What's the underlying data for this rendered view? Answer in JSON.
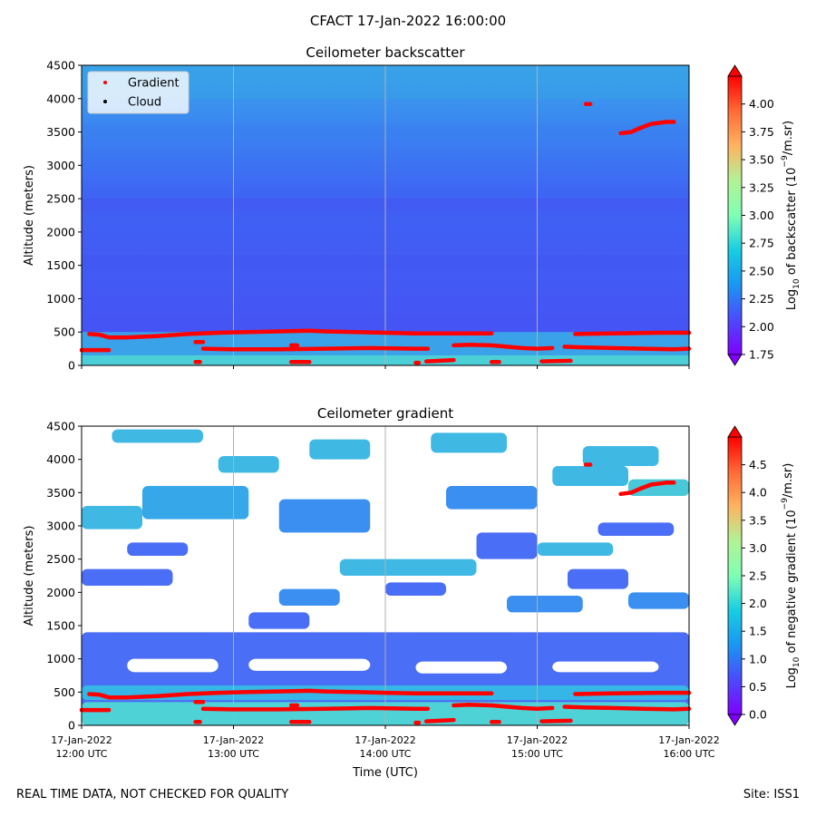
{
  "suptitle": "CFACT 17-Jan-2022 16:00:00",
  "footer": {
    "left": "REAL TIME DATA, NOT CHECKED FOR QUALITY",
    "right": "Site: ISS1"
  },
  "chart_data": [
    {
      "type": "heatmap",
      "title": "Ceilometer backscatter",
      "ylabel": "Altitude (meters)",
      "xlabel": "",
      "ylim": [
        0,
        4500
      ],
      "xlim": [
        12,
        16
      ],
      "yticks": [
        "0",
        "500",
        "1000",
        "1500",
        "2000",
        "2500",
        "3000",
        "3500",
        "4000",
        "4500"
      ],
      "xticks_shown": false,
      "grid": "vertical",
      "background_color": "#3b5cf2",
      "colorbar": {
        "label_prefix": "Log",
        "label_sub": "10",
        "label_mid": " of backscatter (10",
        "label_sup": "−9",
        "label_suffix": "/m.sr)",
        "min": 1.75,
        "max": 4.25,
        "ticks": [
          "1.75",
          "2.00",
          "2.25",
          "2.50",
          "2.75",
          "3.00",
          "3.25",
          "3.50",
          "3.75",
          "4.00"
        ],
        "extend": "both",
        "colormap": "rainbow"
      },
      "legend": {
        "position": "upper-left",
        "entries": [
          {
            "label": "Gradient",
            "color": "#ff0000"
          },
          {
            "label": "Cloud",
            "color": "#000000"
          }
        ]
      },
      "series": [
        {
          "name": "Gradient",
          "color": "#ff0000",
          "segments": [
            [
              [
                12.05,
                470
              ],
              [
                12.12,
                460
              ],
              [
                12.18,
                420
              ],
              [
                12.3,
                420
              ],
              [
                12.5,
                440
              ],
              [
                12.7,
                470
              ],
              [
                12.9,
                490
              ],
              [
                13.1,
                500
              ],
              [
                13.3,
                510
              ],
              [
                13.5,
                520
              ],
              [
                13.6,
                510
              ],
              [
                13.8,
                500
              ],
              [
                14.0,
                490
              ],
              [
                14.2,
                480
              ],
              [
                14.5,
                480
              ],
              [
                14.7,
                480
              ]
            ],
            [
              [
                12.0,
                230
              ],
              [
                12.18,
                230
              ]
            ],
            [
              [
                12.75,
                350
              ],
              [
                12.8,
                350
              ]
            ],
            [
              [
                12.8,
                250
              ],
              [
                13.0,
                240
              ],
              [
                13.3,
                240
              ],
              [
                13.6,
                250
              ],
              [
                13.9,
                260
              ],
              [
                14.2,
                250
              ],
              [
                14.28,
                250
              ]
            ],
            [
              [
                13.38,
                300
              ],
              [
                13.42,
                300
              ]
            ],
            [
              [
                12.75,
                50
              ],
              [
                12.78,
                50
              ]
            ],
            [
              [
                13.38,
                50
              ],
              [
                13.5,
                50
              ]
            ],
            [
              [
                14.2,
                40
              ],
              [
                14.22,
                40
              ]
            ],
            [
              [
                14.27,
                60
              ],
              [
                14.45,
                80
              ]
            ],
            [
              [
                14.45,
                300
              ],
              [
                14.55,
                310
              ],
              [
                14.7,
                300
              ],
              [
                14.9,
                260
              ],
              [
                15.0,
                250
              ],
              [
                15.1,
                260
              ]
            ],
            [
              [
                14.7,
                50
              ],
              [
                14.75,
                50
              ]
            ],
            [
              [
                15.03,
                60
              ],
              [
                15.22,
                70
              ]
            ],
            [
              [
                15.18,
                280
              ],
              [
                15.3,
                270
              ],
              [
                15.5,
                260
              ],
              [
                15.7,
                250
              ],
              [
                15.9,
                240
              ],
              [
                16.0,
                250
              ]
            ],
            [
              [
                15.25,
                470
              ],
              [
                15.5,
                480
              ],
              [
                15.8,
                490
              ],
              [
                16.0,
                490
              ]
            ],
            [
              [
                15.32,
                3920
              ],
              [
                15.35,
                3920
              ]
            ],
            [
              [
                15.55,
                3480
              ],
              [
                15.62,
                3500
              ],
              [
                15.68,
                3560
              ],
              [
                15.75,
                3620
              ],
              [
                15.85,
                3650
              ],
              [
                15.9,
                3650
              ]
            ]
          ]
        }
      ]
    },
    {
      "type": "heatmap",
      "title": "Ceilometer gradient",
      "ylabel": "Altitude (meters)",
      "xlabel": "Time (UTC)",
      "ylim": [
        0,
        4500
      ],
      "xlim": [
        12,
        16
      ],
      "yticks": [
        "0",
        "500",
        "1000",
        "1500",
        "2000",
        "2500",
        "3000",
        "3500",
        "4000",
        "4500"
      ],
      "xticks": [
        {
          "x": 12,
          "line1": "17-Jan-2022",
          "line2": "12:00 UTC"
        },
        {
          "x": 13,
          "line1": "17-Jan-2022",
          "line2": "13:00 UTC"
        },
        {
          "x": 14,
          "line1": "17-Jan-2022",
          "line2": "14:00 UTC"
        },
        {
          "x": 15,
          "line1": "17-Jan-2022",
          "line2": "15:00 UTC"
        },
        {
          "x": 16,
          "line1": "17-Jan-2022",
          "line2": "16:00 UTC"
        }
      ],
      "grid": "vertical",
      "colorbar": {
        "label_prefix": "Log",
        "label_sub": "10",
        "label_mid": " of negative gradient (10",
        "label_sup": "−9",
        "label_suffix": "/m.sr)",
        "min": 0.0,
        "max": 5.0,
        "ticks": [
          "0.0",
          "0.5",
          "1.0",
          "1.5",
          "2.0",
          "2.5",
          "3.0",
          "3.5",
          "4.0",
          "4.5"
        ],
        "extend": "both",
        "colormap": "rainbow"
      },
      "bands": [
        {
          "x0": 12.0,
          "x1": 16.0,
          "y0": 0,
          "y1": 1400,
          "color": "#4a6ef5"
        },
        {
          "x0": 12.0,
          "x1": 16.0,
          "y0": 0,
          "y1": 350,
          "color": "#4fd2d6"
        },
        {
          "x0": 12.0,
          "x1": 16.0,
          "y0": 380,
          "y1": 600,
          "color": "#35b6e6"
        },
        {
          "x0": 12.4,
          "x1": 13.1,
          "y0": 3100,
          "y1": 3600,
          "color": "#36a7e8"
        },
        {
          "x0": 12.0,
          "x1": 12.4,
          "y0": 2950,
          "y1": 3300,
          "color": "#3fb8e4"
        },
        {
          "x0": 13.3,
          "x1": 13.9,
          "y0": 2900,
          "y1": 3400,
          "color": "#3a8ff0"
        },
        {
          "x0": 14.4,
          "x1": 15.0,
          "y0": 3250,
          "y1": 3600,
          "color": "#3a8ff0"
        },
        {
          "x0": 14.3,
          "x1": 14.8,
          "y0": 4100,
          "y1": 4400,
          "color": "#3fb8e4"
        },
        {
          "x0": 15.3,
          "x1": 15.8,
          "y0": 3900,
          "y1": 4200,
          "color": "#3fb8e4"
        },
        {
          "x0": 15.6,
          "x1": 16.0,
          "y0": 3450,
          "y1": 3700,
          "color": "#48c8d8"
        },
        {
          "x0": 13.7,
          "x1": 14.6,
          "y0": 2250,
          "y1": 2500,
          "color": "#3fb8e4"
        },
        {
          "x0": 15.0,
          "x1": 15.5,
          "y0": 2550,
          "y1": 2750,
          "color": "#3fb8e4"
        },
        {
          "x0": 12.9,
          "x1": 13.3,
          "y0": 3800,
          "y1": 4050,
          "color": "#3fb8e4"
        },
        {
          "x0": 13.5,
          "x1": 13.9,
          "y0": 4000,
          "y1": 4300,
          "color": "#3fb8e4"
        },
        {
          "x0": 12.2,
          "x1": 12.8,
          "y0": 4250,
          "y1": 4450,
          "color": "#3fb8e4"
        },
        {
          "x0": 14.8,
          "x1": 15.3,
          "y0": 1700,
          "y1": 1950,
          "color": "#3a8ff0"
        },
        {
          "x0": 13.3,
          "x1": 13.7,
          "y0": 1800,
          "y1": 2050,
          "color": "#3a8ff0"
        },
        {
          "x0": 15.6,
          "x1": 16.0,
          "y0": 1750,
          "y1": 2000,
          "color": "#3a8ff0"
        },
        {
          "x0": 12.0,
          "x1": 12.6,
          "y0": 2100,
          "y1": 2350,
          "color": "#4a6ef5"
        },
        {
          "x0": 14.0,
          "x1": 14.4,
          "y0": 1950,
          "y1": 2150,
          "color": "#4a6ef5"
        },
        {
          "x0": 15.2,
          "x1": 15.6,
          "y0": 2050,
          "y1": 2350,
          "color": "#4a6ef5"
        },
        {
          "x0": 13.1,
          "x1": 13.5,
          "y0": 1450,
          "y1": 1700,
          "color": "#4a6ef5"
        },
        {
          "x0": 12.3,
          "x1": 12.7,
          "y0": 2550,
          "y1": 2750,
          "color": "#4a6ef5"
        },
        {
          "x0": 14.6,
          "x1": 15.0,
          "y0": 2500,
          "y1": 2900,
          "color": "#4a6ef5"
        },
        {
          "x0": 15.4,
          "x1": 15.9,
          "y0": 2850,
          "y1": 3050,
          "color": "#4a6ef5"
        },
        {
          "x0": 15.1,
          "x1": 15.6,
          "y0": 3600,
          "y1": 3900,
          "color": "#3fb8e4"
        }
      ],
      "holes": [
        {
          "x0": 12.3,
          "x1": 12.9,
          "y0": 800,
          "y1": 1000
        },
        {
          "x0": 13.1,
          "x1": 13.9,
          "y0": 820,
          "y1": 1000
        },
        {
          "x0": 14.2,
          "x1": 14.8,
          "y0": 780,
          "y1": 960
        },
        {
          "x0": 15.1,
          "x1": 15.8,
          "y0": 800,
          "y1": 960
        }
      ],
      "series": [
        {
          "name": "Gradient",
          "color": "#ff0000",
          "segments": [
            [
              [
                12.05,
                470
              ],
              [
                12.12,
                460
              ],
              [
                12.18,
                420
              ],
              [
                12.3,
                420
              ],
              [
                12.5,
                440
              ],
              [
                12.7,
                470
              ],
              [
                12.9,
                490
              ],
              [
                13.1,
                500
              ],
              [
                13.3,
                510
              ],
              [
                13.5,
                520
              ],
              [
                13.6,
                510
              ],
              [
                13.8,
                500
              ],
              [
                14.0,
                490
              ],
              [
                14.2,
                480
              ],
              [
                14.5,
                480
              ],
              [
                14.7,
                480
              ]
            ],
            [
              [
                12.0,
                230
              ],
              [
                12.18,
                230
              ]
            ],
            [
              [
                12.75,
                350
              ],
              [
                12.8,
                350
              ]
            ],
            [
              [
                12.8,
                250
              ],
              [
                13.0,
                240
              ],
              [
                13.3,
                240
              ],
              [
                13.6,
                250
              ],
              [
                13.9,
                260
              ],
              [
                14.2,
                250
              ],
              [
                14.28,
                250
              ]
            ],
            [
              [
                13.38,
                300
              ],
              [
                13.42,
                300
              ]
            ],
            [
              [
                12.75,
                50
              ],
              [
                12.78,
                50
              ]
            ],
            [
              [
                13.38,
                50
              ],
              [
                13.5,
                50
              ]
            ],
            [
              [
                14.2,
                40
              ],
              [
                14.22,
                40
              ]
            ],
            [
              [
                14.27,
                60
              ],
              [
                14.45,
                80
              ]
            ],
            [
              [
                14.45,
                300
              ],
              [
                14.55,
                310
              ],
              [
                14.7,
                300
              ],
              [
                14.9,
                260
              ],
              [
                15.0,
                250
              ],
              [
                15.1,
                260
              ]
            ],
            [
              [
                14.7,
                50
              ],
              [
                14.75,
                50
              ]
            ],
            [
              [
                15.03,
                60
              ],
              [
                15.22,
                70
              ]
            ],
            [
              [
                15.18,
                280
              ],
              [
                15.3,
                270
              ],
              [
                15.5,
                260
              ],
              [
                15.7,
                250
              ],
              [
                15.9,
                240
              ],
              [
                16.0,
                250
              ]
            ],
            [
              [
                15.25,
                470
              ],
              [
                15.5,
                480
              ],
              [
                15.8,
                490
              ],
              [
                16.0,
                490
              ]
            ],
            [
              [
                15.32,
                3920
              ],
              [
                15.35,
                3920
              ]
            ],
            [
              [
                15.55,
                3480
              ],
              [
                15.62,
                3500
              ],
              [
                15.68,
                3560
              ],
              [
                15.75,
                3620
              ],
              [
                15.85,
                3650
              ],
              [
                15.9,
                3650
              ]
            ]
          ]
        }
      ]
    }
  ]
}
